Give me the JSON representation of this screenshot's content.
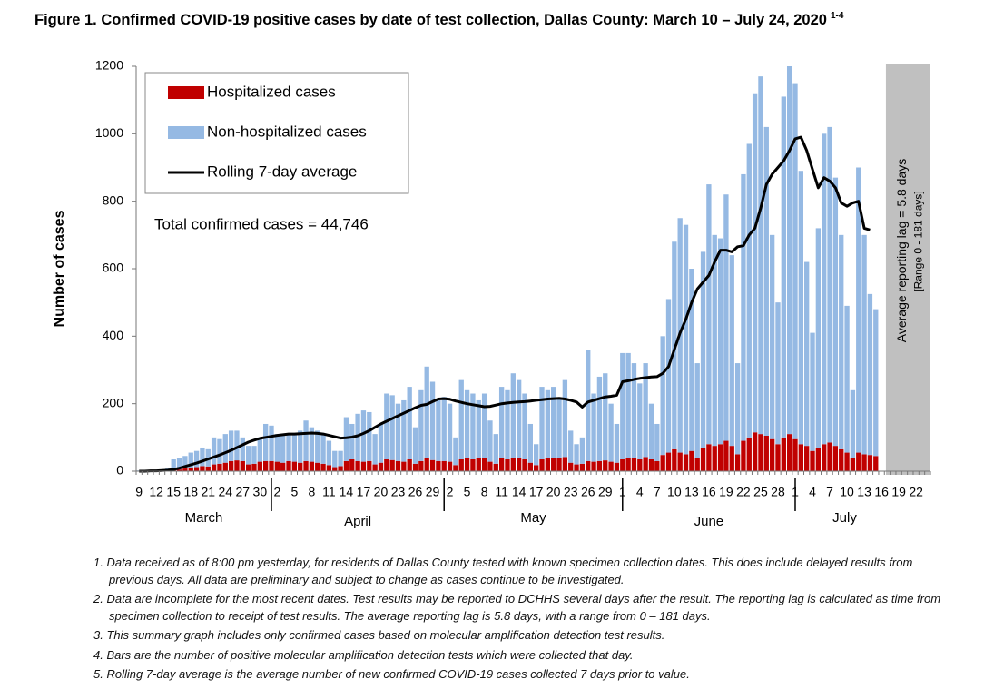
{
  "chart_data": {
    "type": "bar",
    "title": "Figure 1. Confirmed COVID-19 positive cases by date of test collection, Dallas County: March 10 – July 24, 2020",
    "title_superscript": "1-4",
    "ylabel": "Number of cases",
    "annotation": "Total confirmed cases = 44,746",
    "lag_note": "Average reporting lag = 5.8 days",
    "lag_range": "[Range 0 - 181 days]",
    "months": [
      "March",
      "April",
      "May",
      "June",
      "July"
    ],
    "categories": [
      "9",
      null,
      null,
      "12",
      null,
      null,
      "15",
      null,
      null,
      "18",
      null,
      null,
      "21",
      null,
      null,
      "24",
      null,
      null,
      "27",
      null,
      null,
      "30",
      null,
      null,
      "2",
      null,
      null,
      "5",
      null,
      null,
      "8",
      null,
      null,
      "11",
      null,
      null,
      "14",
      null,
      null,
      "17",
      null,
      null,
      "20",
      null,
      null,
      "23",
      null,
      null,
      "26",
      null,
      null,
      "29",
      null,
      null,
      "2",
      null,
      null,
      "5",
      null,
      null,
      "8",
      null,
      null,
      "11",
      null,
      null,
      "14",
      null,
      null,
      "17",
      null,
      null,
      "20",
      null,
      null,
      "23",
      null,
      null,
      "26",
      null,
      null,
      "29",
      null,
      null,
      "1",
      null,
      null,
      "4",
      null,
      null,
      "7",
      null,
      null,
      "10",
      null,
      null,
      "13",
      null,
      null,
      "16",
      null,
      null,
      "19",
      null,
      null,
      "22",
      null,
      null,
      "25",
      null,
      null,
      "28",
      null,
      null,
      "1",
      null,
      null,
      "4",
      null,
      null,
      "7",
      null,
      null,
      "10",
      null,
      null,
      "13",
      null,
      null,
      "16",
      null,
      null,
      "19",
      null,
      null,
      "22",
      null,
      null
    ],
    "series": [
      {
        "name": "Hospitalized cases",
        "type": "bar",
        "color": "#c00000",
        "values": [
          0,
          0,
          0,
          1,
          1,
          2,
          3,
          5,
          8,
          10,
          12,
          15,
          14,
          20,
          22,
          25,
          30,
          32,
          30,
          20,
          22,
          28,
          30,
          30,
          28,
          25,
          30,
          28,
          25,
          30,
          28,
          25,
          22,
          18,
          12,
          15,
          30,
          35,
          30,
          28,
          30,
          20,
          25,
          35,
          33,
          30,
          28,
          35,
          22,
          30,
          38,
          33,
          30,
          30,
          28,
          18,
          35,
          38,
          35,
          40,
          38,
          28,
          22,
          38,
          35,
          40,
          38,
          35,
          25,
          18,
          35,
          38,
          40,
          38,
          42,
          25,
          20,
          22,
          30,
          28,
          30,
          32,
          28,
          25,
          35,
          38,
          40,
          35,
          42,
          35,
          30,
          48,
          55,
          65,
          55,
          50,
          60,
          40,
          70,
          80,
          75,
          80,
          90,
          75,
          50,
          90,
          100,
          115,
          110,
          105,
          95,
          80,
          100,
          110,
          95,
          80,
          75,
          60,
          70,
          80,
          85,
          75,
          65,
          55,
          40,
          55,
          50,
          48,
          45,
          null,
          null,
          null,
          null,
          null,
          null,
          null,
          null,
          null
        ]
      },
      {
        "name": "Non-hospitalized cases",
        "type": "bar",
        "color": "#95b9e3",
        "values": [
          2,
          1,
          3,
          3,
          4,
          6,
          32,
          35,
          37,
          45,
          48,
          55,
          51,
          80,
          73,
          85,
          90,
          88,
          70,
          55,
          53,
          72,
          110,
          105,
          82,
          80,
          80,
          82,
          95,
          120,
          102,
          95,
          88,
          72,
          48,
          45,
          130,
          105,
          140,
          152,
          145,
          90,
          115,
          195,
          192,
          170,
          182,
          215,
          108,
          210,
          272,
          232,
          180,
          190,
          172,
          82,
          235,
          202,
          195,
          170,
          192,
          122,
          88,
          212,
          205,
          250,
          232,
          195,
          115,
          62,
          215,
          202,
          210,
          177,
          228,
          95,
          60,
          78,
          330,
          202,
          250,
          258,
          172,
          115,
          315,
          312,
          280,
          225,
          278,
          165,
          110,
          352,
          455,
          615,
          695,
          680,
          540,
          280,
          580,
          770,
          625,
          610,
          730,
          565,
          270,
          790,
          870,
          1005,
          1060,
          915,
          605,
          420,
          1010,
          1090,
          1055,
          810,
          545,
          350,
          650,
          920,
          935,
          795,
          635,
          435,
          200,
          845,
          650,
          477,
          435,
          null,
          null,
          null,
          null,
          null,
          null,
          null,
          null,
          null
        ]
      },
      {
        "name": "Rolling 7-day average",
        "type": "line",
        "color": "#000000",
        "values": [
          0,
          0,
          1,
          1,
          2,
          3,
          5,
          9,
          14,
          19,
          24,
          30,
          36,
          42,
          48,
          55,
          62,
          70,
          78,
          86,
          92,
          97,
          100,
          103,
          106,
          108,
          110,
          110,
          111,
          112,
          113,
          112,
          110,
          106,
          102,
          98,
          99,
          101,
          105,
          112,
          120,
          130,
          140,
          148,
          156,
          164,
          172,
          180,
          188,
          195,
          198,
          206,
          214,
          215,
          213,
          208,
          204,
          200,
          197,
          194,
          191,
          192,
          196,
          200,
          202,
          204,
          205,
          206,
          208,
          210,
          212,
          214,
          215,
          216,
          214,
          210,
          205,
          190,
          205,
          210,
          215,
          220,
          222,
          225,
          265,
          268,
          272,
          275,
          277,
          279,
          280,
          290,
          310,
          360,
          410,
          450,
          500,
          540,
          560,
          580,
          620,
          655,
          655,
          650,
          665,
          668,
          700,
          720,
          780,
          850,
          880,
          900,
          920,
          950,
          985,
          990,
          950,
          895,
          840,
          870,
          860,
          840,
          795,
          785,
          795,
          800,
          720,
          715,
          null,
          null,
          null,
          null,
          null,
          null,
          null,
          null,
          null,
          null
        ]
      }
    ],
    "ylim": [
      0,
      1200
    ],
    "yticks": [
      0,
      200,
      400,
      600,
      800,
      1000,
      1200
    ],
    "grid": false,
    "legend": "top-left"
  },
  "footnotes": [
    "1. Data received as of 8:00 pm yesterday, for residents of Dallas County tested with known specimen collection dates.  This does include delayed results from previous days. All data are preliminary and subject to change as cases continue to be investigated.",
    "2. Data are incomplete for the most recent dates. Test results may be reported to DCHHS several days after the result. The reporting lag is calculated as time from specimen collection to receipt of test results. The average reporting lag is 5.8 days, with a range from 0 – 181 days.",
    "3. This summary graph includes only confirmed cases based on molecular amplification detection test results.",
    "4. Bars are the number of positive molecular amplification detection tests which were collected that day.",
    "5. Rolling 7-day average is the average number of new confirmed COVID-19 cases collected 7 days prior to value."
  ]
}
